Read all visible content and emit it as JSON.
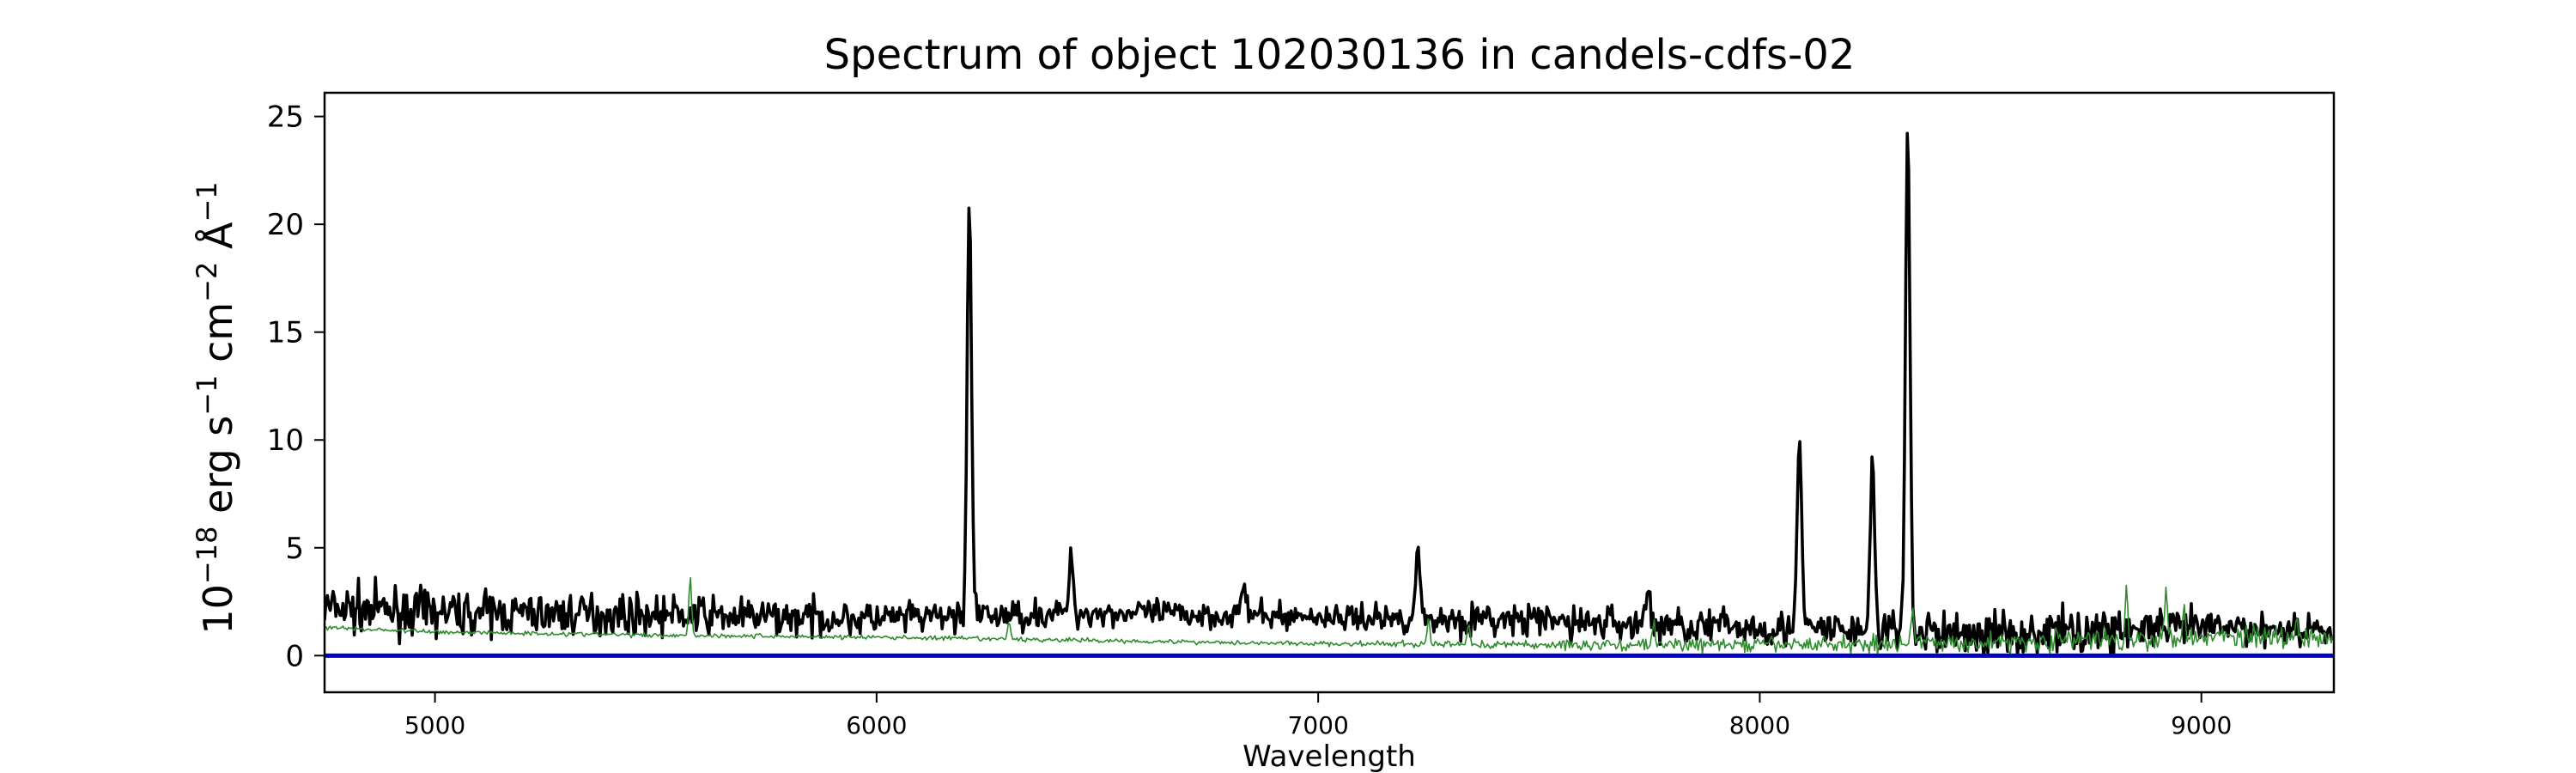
{
  "chart_data": {
    "type": "line",
    "title": "Spectrum of object 102030136 in candels-cdfs-02",
    "xlabel": "Wavelength",
    "ylabel": {
      "parts": [
        "10",
        "−18",
        " erg s",
        "−1",
        " cm",
        "−2",
        " Å",
        "−1"
      ]
    },
    "xlim": [
      4750,
      9300
    ],
    "ylim": [
      -1.7,
      26.1
    ],
    "xticks": [
      5000,
      6000,
      7000,
      8000,
      9000
    ],
    "yticks": [
      0,
      5,
      10,
      15,
      20,
      25
    ],
    "grid": false,
    "legend": "none",
    "series": [
      {
        "role": "flux",
        "color": "#000000",
        "continuum": [
          [
            4750,
            2.2
          ],
          [
            5000,
            2.0
          ],
          [
            5500,
            1.9
          ],
          [
            6000,
            1.7
          ],
          [
            6500,
            2.0
          ],
          [
            7000,
            1.8
          ],
          [
            7500,
            1.6
          ],
          [
            8000,
            1.3
          ],
          [
            8500,
            1.0
          ],
          [
            9000,
            1.3
          ],
          [
            9300,
            1.2
          ]
        ],
        "noise_amplitude": [
          [
            4750,
            1.6
          ],
          [
            5000,
            1.4
          ],
          [
            6000,
            1.1
          ],
          [
            7000,
            0.8
          ],
          [
            7500,
            1.2
          ],
          [
            8300,
            1.2
          ],
          [
            8500,
            1.6
          ],
          [
            9300,
            1.0
          ]
        ],
        "emission_lines": [
          {
            "x": 6210,
            "peak": 21.0
          },
          {
            "x": 6440,
            "peak": 4.3
          },
          {
            "x": 6830,
            "peak": 3.3
          },
          {
            "x": 7225,
            "peak": 4.9
          },
          {
            "x": 7745,
            "peak": 3.0
          },
          {
            "x": 8090,
            "peak": 9.8
          },
          {
            "x": 8255,
            "peak": 8.9
          },
          {
            "x": 8335,
            "peak": 24.8
          }
        ]
      },
      {
        "role": "error",
        "color": "#2e8b2e",
        "continuum": [
          [
            4750,
            1.3
          ],
          [
            5000,
            1.1
          ],
          [
            5500,
            0.95
          ],
          [
            6000,
            0.85
          ],
          [
            6500,
            0.7
          ],
          [
            7000,
            0.55
          ],
          [
            7500,
            0.5
          ],
          [
            8000,
            0.5
          ],
          [
            8500,
            0.6
          ],
          [
            9000,
            0.9
          ],
          [
            9300,
            1.0
          ]
        ],
        "noise_amplitude": [
          [
            4750,
            0.15
          ],
          [
            7000,
            0.15
          ],
          [
            8000,
            0.5
          ],
          [
            9300,
            0.9
          ]
        ],
        "emission_lines": [
          {
            "x": 5578,
            "peak": 3.8
          },
          {
            "x": 6300,
            "peak": 1.6
          },
          {
            "x": 7250,
            "peak": 1.6
          },
          {
            "x": 7340,
            "peak": 1.5
          },
          {
            "x": 7760,
            "peak": 1.6
          },
          {
            "x": 8345,
            "peak": 2.4
          },
          {
            "x": 8830,
            "peak": 2.9
          },
          {
            "x": 8920,
            "peak": 2.9
          },
          {
            "x": 8960,
            "peak": 2.7
          }
        ]
      },
      {
        "role": "zero-line",
        "color": "#0000cc",
        "x": [
          4750,
          9300
        ],
        "y": [
          0,
          0
        ]
      }
    ]
  }
}
